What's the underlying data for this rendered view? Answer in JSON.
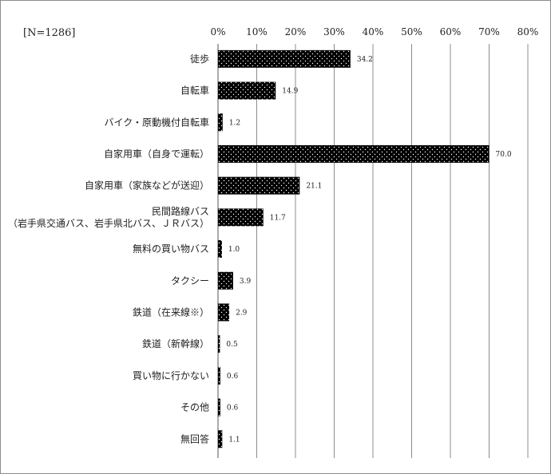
{
  "n_label": "[N=1286]",
  "chart_data": {
    "type": "bar",
    "orientation": "horizontal",
    "categories": [
      [
        "徒歩"
      ],
      [
        "自転車"
      ],
      [
        "バイク・原動機付自転車"
      ],
      [
        "自家用車（自身で運転）"
      ],
      [
        "自家用車（家族などが送迎）"
      ],
      [
        "民間路線バス",
        "（岩手県交通バス、岩手県北バス、ＪＲバス）"
      ],
      [
        "無料の買い物バス"
      ],
      [
        "タクシー"
      ],
      [
        "鉄道（在来線※）"
      ],
      [
        "鉄道（新幹線）"
      ],
      [
        "買い物に行かない"
      ],
      [
        "その他"
      ],
      [
        "無回答"
      ]
    ],
    "values": [
      34.2,
      14.9,
      1.2,
      70.0,
      21.1,
      11.7,
      1.0,
      3.9,
      2.9,
      0.5,
      0.6,
      0.6,
      1.1
    ],
    "value_labels": [
      "34.2",
      "14.9",
      "1.2",
      "70.0",
      "21.1",
      "11.7",
      "1.0",
      "3.9",
      "2.9",
      "0.5",
      "0.6",
      "0.6",
      "1.1"
    ],
    "xlim": [
      0,
      80
    ],
    "xticks": [
      0,
      10,
      20,
      30,
      40,
      50,
      60,
      70,
      80
    ],
    "xtick_labels": [
      "0%",
      "10%",
      "20%",
      "30%",
      "40%",
      "50%",
      "60%",
      "70%",
      "80%"
    ],
    "axis_position": "top",
    "grid": true,
    "bar_color": "#000000",
    "dot_color": "#ffffff",
    "gridline_color": "#8c8c8c"
  }
}
